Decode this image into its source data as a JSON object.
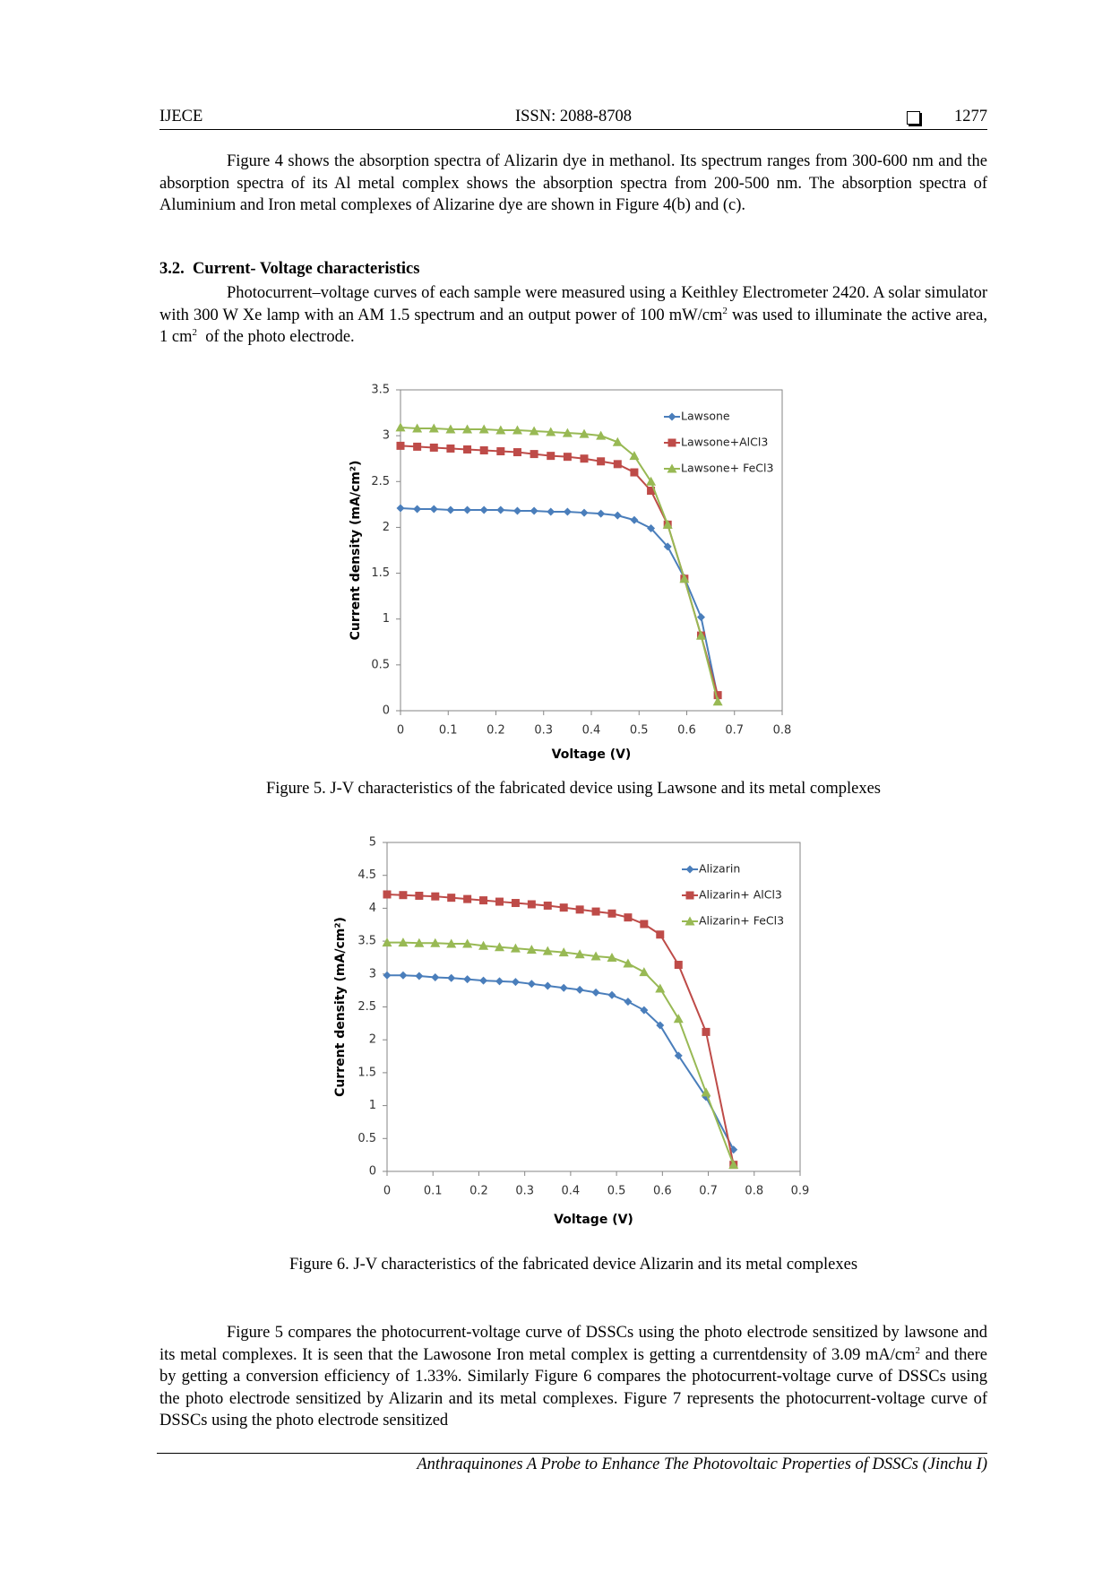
{
  "header": {
    "left": "IJECE",
    "center": "ISSN: 2088-8708",
    "page": "1277"
  },
  "paragraph_1": "Figure 4 shows the absorption spectra of Alizarin dye in methanol. Its spectrum ranges from 300-600 nm and the absorption spectra of its Al metal complex shows the absorption spectra from 200-500 nm. The absorption spectra of Aluminium and Iron metal complexes of Alizarine dye are shown in Figure 4(b) and (c).",
  "section": {
    "heading": "3.2.  Current- Voltage characteristics",
    "paragraph": [
      "Photocurrent–voltage curves of each sample were measured using a Keithley Electrometer 2420. A solar simulator with 300 W Xe lamp with an AM 1.5 spectrum and an output power of 100 mW/cm",
      "2",
      " was used to illuminate the active area, 1 cm",
      "2",
      "  of the photo electrode."
    ]
  },
  "chart_data": [
    {
      "type": "line",
      "caption": "Figure 5. J-V characteristics of the fabricated device using Lawsone and its metal complexes",
      "x_label": "Voltage (V)",
      "y_label": "Current density (mA/cm²)",
      "x": [
        0,
        0.035,
        0.07,
        0.105,
        0.14,
        0.175,
        0.21,
        0.245,
        0.28,
        0.315,
        0.35,
        0.385,
        0.42,
        0.455,
        0.49,
        0.525,
        0.56,
        0.595,
        0.63,
        0.665
      ],
      "series": [
        {
          "name": "Lawsone",
          "color": "#4a7ebb",
          "marker": "diamond",
          "values": [
            2.21,
            2.2,
            2.2,
            2.19,
            2.19,
            2.19,
            2.19,
            2.18,
            2.18,
            2.17,
            2.17,
            2.16,
            2.15,
            2.13,
            2.08,
            1.99,
            1.79,
            1.45,
            1.02,
            0.15
          ]
        },
        {
          "name": "Lawsone+AlCl3",
          "color": "#be4b48",
          "marker": "square",
          "values": [
            2.89,
            2.88,
            2.87,
            2.86,
            2.85,
            2.84,
            2.83,
            2.82,
            2.8,
            2.78,
            2.77,
            2.75,
            2.72,
            2.69,
            2.6,
            2.4,
            2.03,
            1.44,
            0.82,
            0.17
          ]
        },
        {
          "name": "Lawsone+ FeCl3",
          "color": "#98b954",
          "marker": "triangle",
          "values": [
            3.09,
            3.08,
            3.08,
            3.07,
            3.07,
            3.07,
            3.06,
            3.06,
            3.05,
            3.04,
            3.03,
            3.02,
            3.0,
            2.93,
            2.78,
            2.5,
            2.03,
            1.44,
            0.82,
            0.1
          ]
        }
      ],
      "xlim": [
        0,
        0.8
      ],
      "xticks": [
        0,
        0.1,
        0.2,
        0.3,
        0.4,
        0.5,
        0.6,
        0.7,
        0.8
      ],
      "ylim": [
        0,
        3.5
      ],
      "yticks": [
        0,
        0.5,
        1,
        1.5,
        2,
        2.5,
        3,
        3.5
      ],
      "grid": false,
      "legend": "upper right"
    },
    {
      "type": "line",
      "caption": "Figure 6. J-V characteristics of the fabricated device Alizarin and its metal complexes",
      "x_label": "Voltage (V)",
      "y_label": "Current density (mA/cm²)",
      "x": [
        0,
        0.035,
        0.07,
        0.105,
        0.14,
        0.175,
        0.21,
        0.245,
        0.28,
        0.315,
        0.35,
        0.385,
        0.42,
        0.455,
        0.49,
        0.525,
        0.56,
        0.595,
        0.635,
        0.695,
        0.755
      ],
      "series": [
        {
          "name": "Alizarin",
          "color": "#4a7ebb",
          "marker": "diamond",
          "values": [
            2.98,
            2.98,
            2.97,
            2.95,
            2.94,
            2.92,
            2.9,
            2.89,
            2.88,
            2.85,
            2.82,
            2.79,
            2.76,
            2.72,
            2.68,
            2.58,
            2.45,
            2.22,
            1.76,
            1.13,
            0.33
          ]
        },
        {
          "name": "Alizarin+ AlCl3",
          "color": "#be4b48",
          "marker": "square",
          "values": [
            4.21,
            4.2,
            4.19,
            4.18,
            4.16,
            4.14,
            4.12,
            4.1,
            4.08,
            4.06,
            4.04,
            4.01,
            3.98,
            3.95,
            3.92,
            3.86,
            3.76,
            3.6,
            3.14,
            2.12,
            0.1
          ]
        },
        {
          "name": "Alizarin+ FeCl3",
          "color": "#98b954",
          "marker": "triangle",
          "values": [
            3.48,
            3.48,
            3.47,
            3.47,
            3.46,
            3.46,
            3.43,
            3.41,
            3.39,
            3.37,
            3.35,
            3.33,
            3.3,
            3.27,
            3.25,
            3.16,
            3.03,
            2.78,
            2.32,
            1.2,
            0.1
          ]
        }
      ],
      "xlim": [
        0,
        0.9
      ],
      "xticks": [
        0,
        0.1,
        0.2,
        0.3,
        0.4,
        0.5,
        0.6,
        0.7,
        0.8,
        0.9
      ],
      "ylim": [
        0,
        5
      ],
      "yticks": [
        0,
        0.5,
        1,
        1.5,
        2,
        2.5,
        3,
        3.5,
        4,
        4.5,
        5
      ],
      "grid": false,
      "legend": "upper right"
    }
  ],
  "paragraph_3": [
    "Figure 5 compares the photocurrent-voltage curve of DSSCs using the photo electrode sensitized by lawsone and its metal complexes. It is seen that the Lawosone Iron metal complex is getting a currentdensity of 3.09 mA/cm",
    "2",
    " and there by getting a conversion efficiency of 1.33%. Similarly Figure 6 compares the photocurrent-voltage curve of DSSCs using the photo electrode sensitized by Alizarin and its metal complexes. Figure 7 represents the photocurrent-voltage curve of DSSCs using the photo electrode sensitized"
  ],
  "footer": "Anthraquinones A Probe to Enhance The Photovoltaic Properties of DSSCs (Jinchu I)"
}
